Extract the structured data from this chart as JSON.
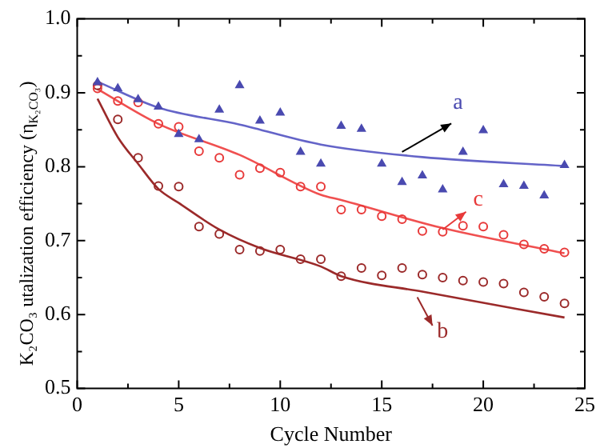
{
  "chart_data": {
    "type": "scatter",
    "xlabel": "Cycle Number",
    "ylabel": "K₂CO₃ utalization efficiency (η$_{K₂CO₃}$)",
    "xlim": [
      0,
      25
    ],
    "xticks": [
      0,
      {
        "value": 2.5,
        "label": null
      },
      5,
      {
        "value": 7.5,
        "label": null
      },
      10,
      {
        "value": 12.5,
        "label": null
      },
      15,
      {
        "value": 17.5,
        "label": null
      },
      20,
      {
        "value": 22.5,
        "label": null
      },
      25
    ],
    "ylim": [
      0.5,
      1.0
    ],
    "yticks": [
      0.5,
      {
        "value": 0.55,
        "label": null
      },
      0.6,
      {
        "value": 0.65,
        "label": null
      },
      0.7,
      {
        "value": 0.75,
        "label": null
      },
      0.8,
      {
        "value": 0.85,
        "label": null
      },
      0.9,
      {
        "value": 0.95,
        "label": null
      },
      {
        "value": 1.0,
        "label": "1.0"
      }
    ],
    "grid": false,
    "legend": false,
    "x": [
      1,
      2,
      3,
      4,
      5,
      6,
      7,
      8,
      9,
      10,
      11,
      12,
      13,
      14,
      15,
      16,
      17,
      18,
      19,
      20,
      21,
      22,
      23,
      24
    ],
    "series": [
      {
        "color": "#4a4ab0",
        "marker": "triangle",
        "values": [
          0.914,
          0.906,
          0.891,
          0.881,
          0.844,
          0.837,
          0.877,
          0.91,
          0.862,
          0.873,
          0.82,
          0.804,
          0.855,
          0.851,
          0.804,
          0.779,
          0.788,
          0.769,
          0.82,
          0.849,
          0.776,
          0.774,
          0.761,
          0.802
        ]
      },
      {
        "color": "#e83a3a",
        "marker": "circle",
        "values": [
          0.906,
          0.889,
          0.887,
          0.858,
          0.854,
          0.821,
          0.812,
          0.789,
          0.798,
          0.792,
          0.773,
          0.773,
          0.742,
          0.742,
          0.733,
          0.729,
          0.713,
          0.712,
          0.72,
          0.719,
          0.708,
          0.695,
          0.689,
          0.684
        ]
      },
      {
        "color": "#9b2a2a",
        "marker": "circle",
        "values": [
          0.91,
          0.864,
          0.812,
          0.774,
          0.773,
          0.719,
          0.709,
          0.688,
          0.686,
          0.688,
          0.675,
          0.675,
          0.652,
          0.663,
          0.653,
          0.663,
          0.654,
          0.65,
          0.646,
          0.644,
          0.642,
          0.63,
          0.624,
          0.615
        ]
      },
      {
        "type": "line",
        "color": "#6464c8",
        "marker": "none",
        "x": [
          1,
          4,
          8,
          12,
          17,
          24
        ],
        "values": [
          0.915,
          0.88,
          0.857,
          0.83,
          0.813,
          0.801
        ]
      },
      {
        "type": "line",
        "color": "#f05050",
        "marker": "none",
        "x": [
          1,
          4,
          8,
          12,
          13,
          18,
          24
        ],
        "values": [
          0.905,
          0.858,
          0.816,
          0.762,
          0.755,
          0.717,
          0.683
        ]
      },
      {
        "type": "line",
        "color": "#9b2a2a",
        "marker": "none",
        "x": [
          1,
          2,
          3,
          4,
          5,
          7,
          9,
          12,
          13,
          17,
          24
        ],
        "values": [
          0.892,
          0.84,
          0.804,
          0.77,
          0.751,
          0.715,
          0.69,
          0.665,
          0.652,
          0.631,
          0.596
        ]
      }
    ],
    "annotations": [
      "a",
      "c",
      "b"
    ]
  }
}
